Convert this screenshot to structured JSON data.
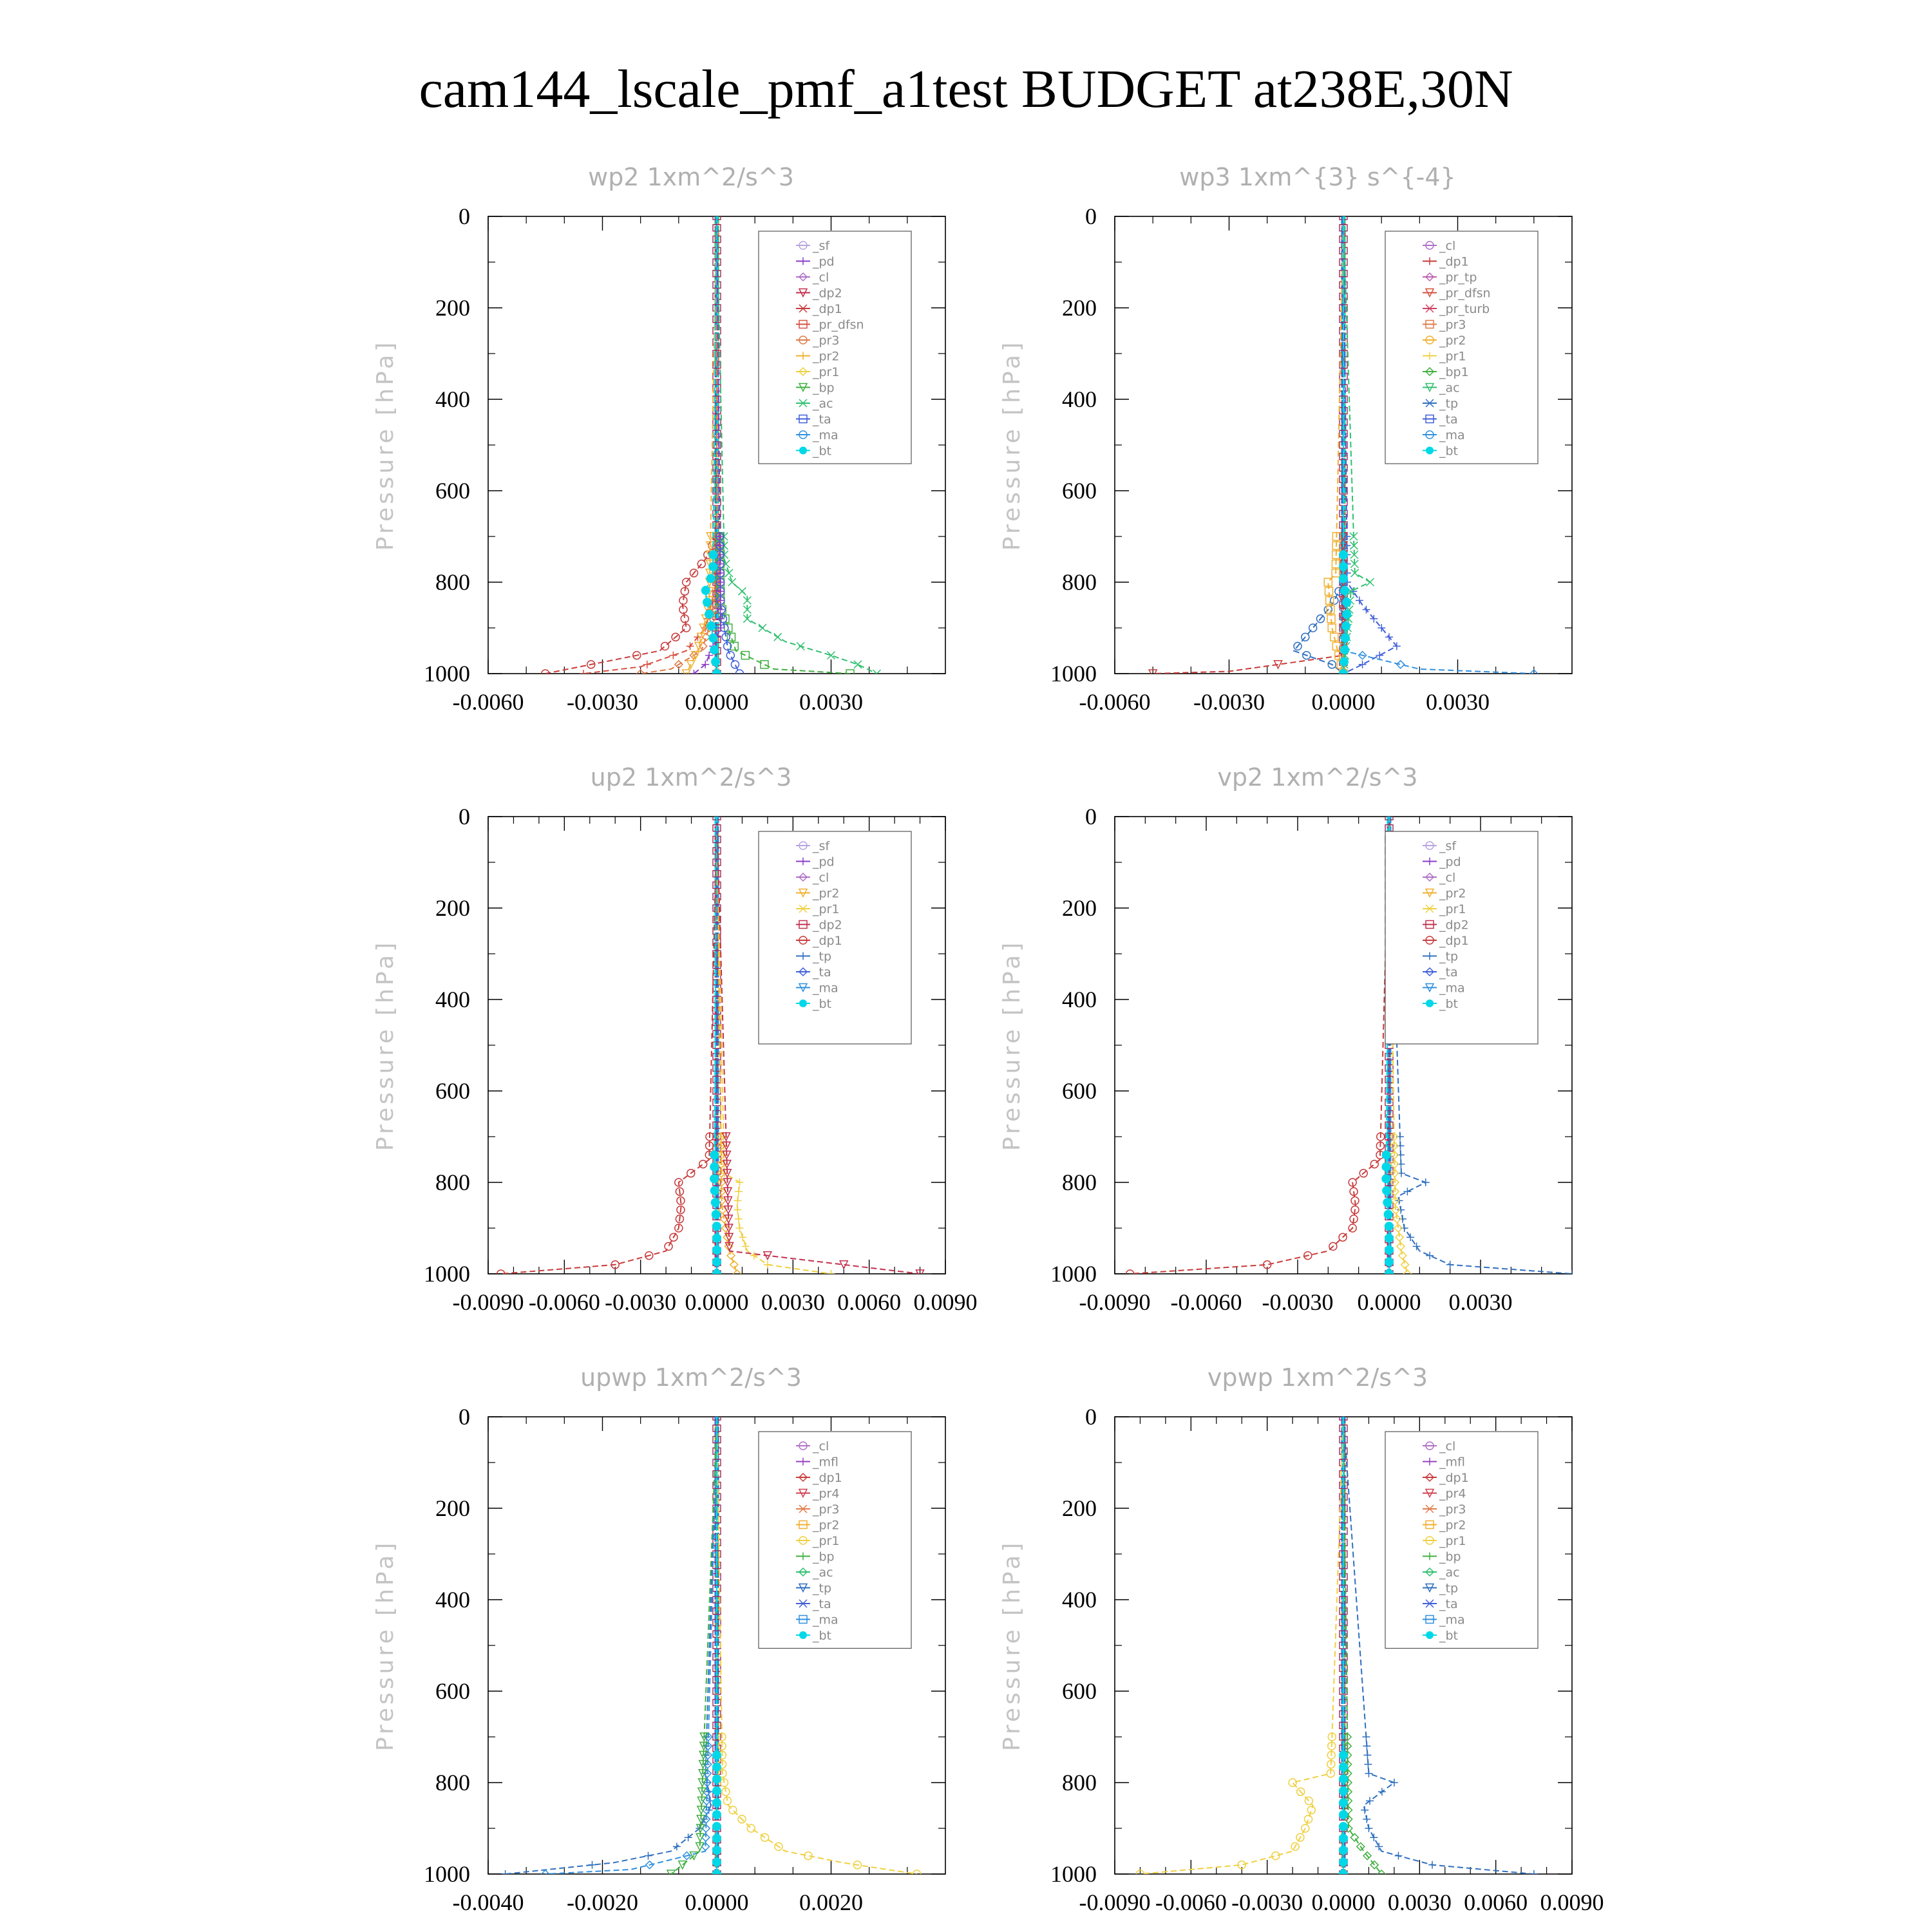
{
  "title": "cam144_lscale_pmf_a1test  BUDGET at238E,30N",
  "colors": {
    "_sf": "#b8a2e0",
    "_pd": "#8a3cc8",
    "_cl": "#b070c8",
    "_dp2": "#c2304f",
    "_dp1": "#c83b3b",
    "_pr_dfsn": "#d85040",
    "_pr3": "#e07b4a",
    "_pr2": "#f0b030",
    "_pr1": "#f0d040",
    "_bp": "#40b040",
    "_ac": "#30c070",
    "_ta": "#4060d8",
    "_ma": "#3090e0",
    "_bt": "#00d8e8",
    "_pr_tp": "#c060b0",
    "_pr_turb": "#d04060",
    "_bp1": "#40b040",
    "_tp": "#3070c0",
    "_mfl": "#9840c0",
    "_pr4": "#d04050"
  },
  "chart_data": [
    {
      "type": "line",
      "title": "wp2   1xm^2/s^3",
      "ylabel": "Pressure [hPa]",
      "xlim": [
        -0.006,
        0.006
      ],
      "ylim": [
        1000,
        0
      ],
      "xticks": [
        -0.006,
        -0.003,
        0.0,
        0.003
      ],
      "xtick_labels": [
        "-0.0060",
        "-0.0030",
        "0.0000",
        "0.0030"
      ],
      "yticks": [
        0,
        200,
        400,
        600,
        800,
        1000
      ],
      "ytick_labels": [
        "0",
        "200",
        "400",
        "600",
        "800",
        "1000"
      ],
      "legend": [
        "_sf",
        "_pd",
        "_cl",
        "_dp2",
        "_dp1",
        "_pr_dfsn",
        "_pr3",
        "_pr2",
        "_pr1",
        "_bp",
        "_ac",
        "_ta",
        "_ma",
        "_bt"
      ],
      "grid": false,
      "legend_position": "top-right",
      "series": [
        {
          "name": "_dp1",
          "y": [
            0,
            700,
            750,
            800,
            850,
            900,
            950,
            975,
            1000
          ],
          "x": [
            0,
            0,
            -0.0003,
            -0.0008,
            -0.0009,
            -0.0008,
            -0.0015,
            -0.003,
            -0.0045
          ]
        },
        {
          "name": "_pr_dfsn",
          "y": [
            0,
            800,
            900,
            950,
            985,
            1000
          ],
          "x": [
            0,
            0,
            -0.0003,
            -0.0008,
            -0.002,
            -0.0035
          ]
        },
        {
          "name": "_pr3",
          "y": [
            0,
            850,
            950,
            990,
            1000
          ],
          "x": [
            0,
            0,
            -0.0004,
            -0.0012,
            -0.002
          ]
        },
        {
          "name": "_pr2",
          "y": [
            0,
            850,
            950,
            1000
          ],
          "x": [
            0,
            -0.0002,
            -0.0005,
            -0.0008
          ]
        },
        {
          "name": "_ac",
          "y": [
            0,
            750,
            800,
            830,
            880,
            930,
            960,
            980,
            1000
          ],
          "x": [
            0,
            0.0002,
            0.0004,
            0.0008,
            0.0008,
            0.0018,
            0.003,
            0.0037,
            0.0042
          ]
        },
        {
          "name": "_bp",
          "y": [
            0,
            850,
            950,
            990,
            1000
          ],
          "x": [
            0,
            0.0001,
            0.0005,
            0.0015,
            0.0035
          ]
        },
        {
          "name": "_ta",
          "y": [
            0,
            850,
            950,
            1000
          ],
          "x": [
            0,
            0.0001,
            0.0003,
            0.0006
          ]
        },
        {
          "name": "_pd",
          "y": [
            0,
            900,
            980,
            1000
          ],
          "x": [
            0,
            0.0001,
            -0.0003,
            -0.0006
          ]
        },
        {
          "name": "_bt",
          "y": [
            0,
            780,
            820,
            870,
            920,
            1000
          ],
          "x": [
            0,
            -0.0001,
            -0.0003,
            -0.0002,
            -0.0001,
            0
          ]
        }
      ]
    },
    {
      "type": "line",
      "title": "wp3   1xm^{3} s^{-4}",
      "ylabel": "Pressure [hPa]",
      "xlim": [
        -0.006,
        0.006
      ],
      "ylim": [
        1000,
        0
      ],
      "xticks": [
        -0.006,
        -0.003,
        0.0,
        0.003
      ],
      "xtick_labels": [
        "-0.0060",
        "-0.0030",
        "0.0000",
        "0.0030"
      ],
      "yticks": [
        0,
        200,
        400,
        600,
        800,
        1000
      ],
      "ytick_labels": [
        "0",
        "200",
        "400",
        "600",
        "800",
        "1000"
      ],
      "legend": [
        "_cl",
        "_dp1",
        "_pr_tp",
        "_pr_dfsn",
        "_pr_turb",
        "_pr3",
        "_pr2",
        "_pr1",
        "_bp1",
        "_ac",
        "_tp",
        "_ta",
        "_ma",
        "_bt"
      ],
      "grid": false,
      "legend_position": "top-right",
      "series": [
        {
          "name": "_tp",
          "y": [
            0,
            800,
            850,
            900,
            950,
            980,
            1000
          ],
          "x": [
            0,
            0,
            -0.0003,
            -0.0008,
            -0.0013,
            -0.0003,
            0
          ]
        },
        {
          "name": "_ta",
          "y": [
            0,
            800,
            850,
            900,
            940,
            980,
            1000
          ],
          "x": [
            0,
            0.0001,
            0.0005,
            0.001,
            0.0014,
            0.0005,
            0
          ]
        },
        {
          "name": "_ma",
          "y": [
            0,
            950,
            990,
            1000
          ],
          "x": [
            0,
            0,
            0.002,
            0.005
          ]
        },
        {
          "name": "_dp1",
          "y": [
            0,
            960,
            995,
            1000
          ],
          "x": [
            0,
            0,
            -0.003,
            -0.005
          ]
        },
        {
          "name": "_ac",
          "y": [
            0,
            780,
            800,
            820,
            1000
          ],
          "x": [
            0,
            0.0003,
            0.0007,
            0.0002,
            0
          ]
        },
        {
          "name": "_pr2",
          "y": [
            0,
            780,
            800,
            900,
            1000
          ],
          "x": [
            0,
            -0.0002,
            -0.0004,
            -0.0003,
            0
          ]
        },
        {
          "name": "_bt",
          "y": [
            0,
            800,
            850,
            1000
          ],
          "x": [
            0,
            0,
            0.0001,
            0
          ]
        }
      ]
    },
    {
      "type": "line",
      "title": "up2   1xm^2/s^3",
      "ylabel": "Pressure [hPa]",
      "xlim": [
        -0.009,
        0.009
      ],
      "ylim": [
        1000,
        0
      ],
      "xticks": [
        -0.009,
        -0.006,
        -0.003,
        0.0,
        0.003,
        0.006,
        0.009
      ],
      "xtick_labels": [
        "-0.0090",
        "-0.0060",
        "-0.0030",
        "0.0000",
        "0.0030",
        "0.0060",
        "0.0090"
      ],
      "yticks": [
        0,
        200,
        400,
        600,
        800,
        1000
      ],
      "ytick_labels": [
        "0",
        "200",
        "400",
        "600",
        "800",
        "1000"
      ],
      "legend": [
        "_sf",
        "_pd",
        "_cl",
        "_pr2",
        "_pr1",
        "_dp2",
        "_dp1",
        "_tp",
        "_ta",
        "_ma",
        "_bt"
      ],
      "grid": false,
      "legend_position": "top-right",
      "series": [
        {
          "name": "_dp1",
          "y": [
            0,
            750,
            800,
            850,
            900,
            950,
            980,
            1000
          ],
          "x": [
            0,
            -0.0003,
            -0.0015,
            -0.0014,
            -0.0015,
            -0.002,
            -0.004,
            -0.0085
          ]
        },
        {
          "name": "_pr1",
          "y": [
            0,
            780,
            800,
            850,
            900,
            950,
            980,
            1000
          ],
          "x": [
            0,
            0.0003,
            0.0009,
            0.0008,
            0.0009,
            0.0012,
            0.002,
            0.0045
          ]
        },
        {
          "name": "_pr2",
          "y": [
            0,
            850,
            950,
            1000
          ],
          "x": [
            0,
            0.0002,
            0.0005,
            0.0008
          ]
        },
        {
          "name": "_dp2",
          "y": [
            0,
            950,
            1000
          ],
          "x": [
            0,
            0.0005,
            0.008
          ]
        },
        {
          "name": "_bt",
          "y": [
            0,
            800,
            900,
            1000
          ],
          "x": [
            0,
            -0.0001,
            0,
            0
          ]
        }
      ]
    },
    {
      "type": "line",
      "title": "vp2   1xm^2/s^3",
      "ylabel": "Pressure [hPa]",
      "xlim": [
        -0.009,
        0.006
      ],
      "ylim": [
        1000,
        0
      ],
      "xticks": [
        -0.009,
        -0.006,
        -0.003,
        0.0,
        0.003
      ],
      "xtick_labels": [
        "-0.0090",
        "-0.0060",
        "-0.0030",
        "0.0000",
        "0.0030"
      ],
      "yticks": [
        0,
        200,
        400,
        600,
        800,
        1000
      ],
      "ytick_labels": [
        "0",
        "200",
        "400",
        "600",
        "800",
        "1000"
      ],
      "legend": [
        "_sf",
        "_pd",
        "_cl",
        "_pr2",
        "_pr1",
        "_dp2",
        "_dp1",
        "_tp",
        "_ta",
        "_ma",
        "_bt"
      ],
      "grid": false,
      "legend_position": "top-right",
      "series": [
        {
          "name": "_dp1",
          "y": [
            0,
            750,
            800,
            850,
            900,
            950,
            980,
            1000
          ],
          "x": [
            0,
            -0.0003,
            -0.0012,
            -0.0011,
            -0.0012,
            -0.002,
            -0.004,
            -0.0085
          ]
        },
        {
          "name": "_tp",
          "y": [
            0,
            780,
            800,
            830,
            900,
            950,
            980,
            1000
          ],
          "x": [
            0,
            0.0004,
            0.0012,
            0.0003,
            0.0005,
            0.001,
            0.002,
            0.006
          ]
        },
        {
          "name": "_pr1",
          "y": [
            0,
            850,
            950,
            1000
          ],
          "x": [
            0,
            0.0002,
            0.0004,
            0.0006
          ]
        },
        {
          "name": "_bt",
          "y": [
            0,
            800,
            900,
            1000
          ],
          "x": [
            0,
            -0.0001,
            0,
            0
          ]
        }
      ]
    },
    {
      "type": "line",
      "title": "upwp   1xm^2/s^3",
      "ylabel": "Pressure [hPa]",
      "xlim": [
        -0.004,
        0.004
      ],
      "ylim": [
        1000,
        0
      ],
      "xticks": [
        -0.004,
        -0.002,
        0.0,
        0.002
      ],
      "xtick_labels": [
        "-0.0040",
        "-0.0020",
        "0.0000",
        "0.0020"
      ],
      "yticks": [
        0,
        200,
        400,
        600,
        800,
        1000
      ],
      "ytick_labels": [
        "0",
        "200",
        "400",
        "600",
        "800",
        "1000"
      ],
      "legend": [
        "_cl",
        "_mfl",
        "_dp1",
        "_pr4",
        "_pr3",
        "_pr2",
        "_pr1",
        "_bp",
        "_ac",
        "_tp",
        "_ta",
        "_ma",
        "_bt"
      ],
      "grid": false,
      "legend_position": "top-right",
      "series": [
        {
          "name": "_pr1",
          "y": [
            0,
            780,
            850,
            900,
            950,
            975,
            1000
          ],
          "x": [
            0,
            0.0001,
            0.0002,
            0.0006,
            0.0012,
            0.0022,
            0.0035
          ]
        },
        {
          "name": "_tp",
          "y": [
            0,
            780,
            850,
            900,
            950,
            975,
            1000
          ],
          "x": [
            0,
            -0.0002,
            -0.0001,
            -0.0003,
            -0.0008,
            -0.0018,
            -0.0037
          ]
        },
        {
          "name": "_ma",
          "y": [
            0,
            950,
            990,
            1000
          ],
          "x": [
            0,
            -0.0002,
            -0.0015,
            -0.003
          ]
        },
        {
          "name": "_bp",
          "y": [
            0,
            950,
            1000
          ],
          "x": [
            0,
            -0.0003,
            -0.0008
          ]
        },
        {
          "name": "_bt",
          "y": [
            0,
            1000
          ],
          "x": [
            0,
            0
          ]
        }
      ]
    },
    {
      "type": "line",
      "title": "vpwp   1xm^2/s^3",
      "ylabel": "Pressure [hPa]",
      "xlim": [
        -0.009,
        0.009
      ],
      "ylim": [
        1000,
        0
      ],
      "xticks": [
        -0.009,
        -0.006,
        -0.003,
        0.0,
        0.003,
        0.006,
        0.009
      ],
      "xtick_labels": [
        "-0.0090",
        "-0.0060",
        "-0.0030",
        "0.0000",
        "0.0030",
        "0.0060",
        "0.0090"
      ],
      "yticks": [
        0,
        200,
        400,
        600,
        800,
        1000
      ],
      "ytick_labels": [
        "0",
        "200",
        "400",
        "600",
        "800",
        "1000"
      ],
      "legend": [
        "_cl",
        "_mfl",
        "_dp1",
        "_pr4",
        "_pr3",
        "_pr2",
        "_pr1",
        "_bp",
        "_ac",
        "_tp",
        "_ta",
        "_ma",
        "_bt"
      ],
      "grid": false,
      "legend_position": "top-right",
      "series": [
        {
          "name": "_pr1",
          "y": [
            0,
            780,
            800,
            850,
            900,
            950,
            980,
            1000
          ],
          "x": [
            0,
            -0.0005,
            -0.002,
            -0.0012,
            -0.0015,
            -0.002,
            -0.004,
            -0.008
          ]
        },
        {
          "name": "_tp",
          "y": [
            0,
            780,
            800,
            850,
            900,
            950,
            980,
            1000
          ],
          "x": [
            0,
            0.001,
            0.002,
            0.0008,
            0.001,
            0.0015,
            0.0035,
            0.0075
          ]
        },
        {
          "name": "_bp",
          "y": [
            0,
            900,
            950,
            1000
          ],
          "x": [
            0,
            0.0002,
            0.0008,
            0.0015
          ]
        },
        {
          "name": "_bt",
          "y": [
            0,
            1000
          ],
          "x": [
            0,
            0
          ]
        }
      ]
    }
  ]
}
